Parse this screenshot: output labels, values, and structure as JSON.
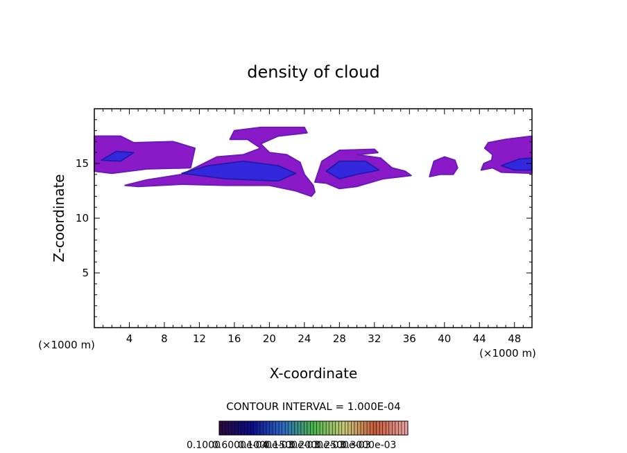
{
  "chart_data": {
    "type": "heatmap",
    "title": "density of cloud",
    "xlabel": "X-coordinate",
    "ylabel": "Z-coordinate",
    "x_unit_left": "(×1000 m)",
    "x_unit_right": "(×1000 m)",
    "xlim": [
      0,
      50
    ],
    "ylim": [
      0,
      20
    ],
    "xticks": [
      4,
      8,
      12,
      16,
      20,
      24,
      28,
      32,
      36,
      40,
      44,
      48
    ],
    "yticks": [
      5,
      10,
      15
    ],
    "contour_interval_text": "CONTOUR INTERVAL = 1.000E-04",
    "colorbar_labels": [
      "0.1000",
      "0.6000e-04",
      "0.1000e-03",
      "0.1500e-03",
      "0.2000e-03",
      "0.2500e-03",
      "0.3000e-03"
    ],
    "colorbar_colors": [
      "#2a0a3c",
      "#0a0a8c",
      "#2a6ac8",
      "#4ab84a",
      "#c8c878",
      "#c85a3a",
      "#e8a0a0"
    ],
    "cloud_colors": {
      "outer": "#8a1ac8",
      "mid": "#6a1ab8",
      "core": "#2a2ae0",
      "deep": "#1a1aa8"
    },
    "clouds": [
      {
        "name": "left-edge",
        "outline": [
          [
            0,
            15.2
          ],
          [
            0,
            17.5
          ],
          [
            3,
            17.5
          ],
          [
            4.5,
            16.9
          ],
          [
            9,
            17
          ],
          [
            11.5,
            16.4
          ],
          [
            11,
            14.6
          ],
          [
            6,
            14.5
          ],
          [
            2,
            14.1
          ],
          [
            0,
            14.3
          ]
        ],
        "core": [
          [
            0.8,
            15.3
          ],
          [
            2.5,
            16.1
          ],
          [
            4.5,
            16
          ],
          [
            3,
            15.2
          ]
        ]
      },
      {
        "name": "main-band",
        "outline": [
          [
            3.5,
            13
          ],
          [
            6,
            13.5
          ],
          [
            10,
            14
          ],
          [
            12,
            14.8
          ],
          [
            14,
            15.6
          ],
          [
            17,
            15.8
          ],
          [
            19,
            16.4
          ],
          [
            17.5,
            17.2
          ],
          [
            15.5,
            17.2
          ],
          [
            16,
            18
          ],
          [
            19,
            18.3
          ],
          [
            24,
            18.3
          ],
          [
            24.3,
            17.8
          ],
          [
            21,
            17.5
          ],
          [
            19,
            16.8
          ],
          [
            20,
            16
          ],
          [
            22,
            15.8
          ],
          [
            23.5,
            15.1
          ],
          [
            24,
            14
          ],
          [
            25,
            13
          ],
          [
            25.2,
            12.4
          ],
          [
            24.8,
            12
          ],
          [
            23,
            12.5
          ],
          [
            20,
            13
          ],
          [
            15,
            13
          ],
          [
            10,
            13.1
          ],
          [
            5,
            12.9
          ]
        ],
        "core": [
          [
            10,
            14.1
          ],
          [
            13,
            14.8
          ],
          [
            17,
            15.2
          ],
          [
            21,
            14.8
          ],
          [
            23,
            14.1
          ],
          [
            21,
            13.4
          ],
          [
            15,
            13.6
          ]
        ]
      },
      {
        "name": "center-right",
        "outline": [
          [
            25.2,
            13.3
          ],
          [
            26,
            15.2
          ],
          [
            28,
            16.2
          ],
          [
            32,
            16.3
          ],
          [
            32.4,
            16
          ],
          [
            30,
            15.8
          ],
          [
            32.7,
            15.5
          ],
          [
            34,
            14.6
          ],
          [
            35.5,
            14.3
          ],
          [
            36.2,
            13.9
          ],
          [
            33,
            13.6
          ],
          [
            30,
            12.9
          ],
          [
            28,
            12.7
          ],
          [
            26.5,
            13.2
          ]
        ],
        "core": [
          [
            26.5,
            14.3
          ],
          [
            28,
            15.2
          ],
          [
            31,
            15.2
          ],
          [
            32.5,
            14.4
          ],
          [
            30,
            14
          ],
          [
            28,
            13.6
          ]
        ]
      },
      {
        "name": "right-small",
        "outline": [
          [
            38.3,
            13.8
          ],
          [
            38.5,
            14.4
          ],
          [
            38.8,
            15.2
          ],
          [
            40,
            15.6
          ],
          [
            41.2,
            15.3
          ],
          [
            41.5,
            14.6
          ],
          [
            41,
            14
          ],
          [
            39.5,
            14
          ]
        ],
        "core": []
      },
      {
        "name": "right-edge",
        "outline": [
          [
            44.2,
            14.4
          ],
          [
            44.5,
            15
          ],
          [
            45.4,
            15.3
          ],
          [
            45.5,
            15.8
          ],
          [
            44.6,
            16.4
          ],
          [
            45,
            16.9
          ],
          [
            47,
            17.2
          ],
          [
            50,
            17.5
          ],
          [
            50,
            14.1
          ],
          [
            46.5,
            14.2
          ],
          [
            45.5,
            14.6
          ]
        ],
        "core": [
          [
            46.5,
            14.8
          ],
          [
            48.5,
            15.4
          ],
          [
            50,
            15.5
          ],
          [
            50,
            14.4
          ],
          [
            48,
            14.4
          ]
        ]
      }
    ]
  }
}
